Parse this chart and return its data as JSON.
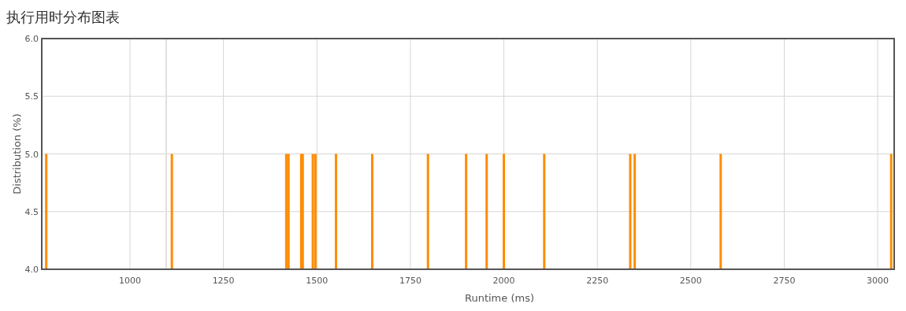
{
  "chart_data": {
    "type": "bar",
    "title": "执行用时分布图表",
    "xlabel": "Runtime (ms)",
    "ylabel": "Distribution (%)",
    "x": [
      776,
      1112,
      1418,
      1424,
      1458,
      1462,
      1489,
      1496,
      1551,
      1648,
      1797,
      1899,
      1954,
      2000,
      2108,
      2338,
      2350,
      2580,
      3036
    ],
    "series": [
      {
        "color": "#ff8c00",
        "values": [
          5,
          5,
          5,
          5,
          5,
          5,
          5,
          5,
          5,
          5,
          5,
          5,
          5,
          5,
          5,
          5,
          5,
          5,
          5
        ]
      }
    ],
    "xlim": [
      764,
      3044
    ],
    "xticks": [
      1000,
      1250,
      1500,
      1750,
      2000,
      2250,
      2500,
      2750,
      3000
    ],
    "ylim": [
      4,
      6
    ],
    "yticks": [
      {
        "value": 4,
        "label": "4.0"
      },
      {
        "value": 4.5,
        "label": "4.5"
      },
      {
        "value": 5,
        "label": "5.0"
      },
      {
        "value": 5.5,
        "label": "5.5"
      },
      {
        "value": 6,
        "label": "6.0"
      }
    ],
    "ref_lines": [
      {
        "axis": "x",
        "value": 1097,
        "color": "#e0e0e0"
      }
    ],
    "grid": true
  }
}
